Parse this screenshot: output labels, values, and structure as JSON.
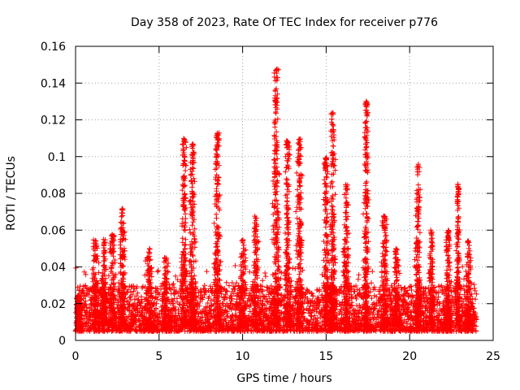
{
  "chart_data": {
    "type": "scatter",
    "title": "Day 358 of 2023, Rate Of TEC Index for receiver p776",
    "xlabel": "GPS time / hours",
    "ylabel": "ROTI / TECUs",
    "xlim": [
      0,
      25
    ],
    "ylim": [
      0,
      0.16
    ],
    "x_ticks": [
      0,
      5,
      10,
      15,
      20,
      25
    ],
    "x_tick_labels": [
      "0",
      "5",
      "10",
      "15",
      "20",
      "25"
    ],
    "y_ticks": [
      0,
      0.02,
      0.04,
      0.06,
      0.08,
      0.1,
      0.12,
      0.14,
      0.16
    ],
    "y_tick_labels": [
      "0",
      "0.02",
      "0.04",
      "0.06",
      "0.08",
      "0.1",
      "0.12",
      "0.14",
      "0.16"
    ],
    "grid": true,
    "marker": "plus",
    "series": [
      {
        "name": "ROTI",
        "color": "#ff0000",
        "x_range": [
          0,
          24
        ],
        "baseline_range": [
          0.005,
          0.03
        ],
        "bursts": [
          {
            "x": 0.2,
            "width": 0.25,
            "peak": 0.025
          },
          {
            "x": 1.2,
            "width": 0.4,
            "peak": 0.055
          },
          {
            "x": 1.7,
            "width": 0.3,
            "peak": 0.055
          },
          {
            "x": 2.2,
            "width": 0.4,
            "peak": 0.058
          },
          {
            "x": 2.8,
            "width": 0.35,
            "peak": 0.072
          },
          {
            "x": 4.4,
            "width": 0.4,
            "peak": 0.05
          },
          {
            "x": 5.4,
            "width": 0.4,
            "peak": 0.045
          },
          {
            "x": 6.5,
            "width": 0.35,
            "peak": 0.11
          },
          {
            "x": 7.0,
            "width": 0.35,
            "peak": 0.107
          },
          {
            "x": 8.5,
            "width": 0.35,
            "peak": 0.113
          },
          {
            "x": 10.0,
            "width": 0.4,
            "peak": 0.055
          },
          {
            "x": 10.8,
            "width": 0.3,
            "peak": 0.068
          },
          {
            "x": 12.0,
            "width": 0.35,
            "peak": 0.148
          },
          {
            "x": 12.7,
            "width": 0.3,
            "peak": 0.11
          },
          {
            "x": 13.4,
            "width": 0.35,
            "peak": 0.11
          },
          {
            "x": 15.0,
            "width": 0.3,
            "peak": 0.1
          },
          {
            "x": 15.4,
            "width": 0.3,
            "peak": 0.124
          },
          {
            "x": 16.2,
            "width": 0.35,
            "peak": 0.085
          },
          {
            "x": 17.4,
            "width": 0.25,
            "peak": 0.131
          },
          {
            "x": 18.5,
            "width": 0.35,
            "peak": 0.068
          },
          {
            "x": 19.2,
            "width": 0.3,
            "peak": 0.05
          },
          {
            "x": 20.5,
            "width": 0.3,
            "peak": 0.096
          },
          {
            "x": 21.3,
            "width": 0.3,
            "peak": 0.06
          },
          {
            "x": 22.3,
            "width": 0.35,
            "peak": 0.06
          },
          {
            "x": 22.9,
            "width": 0.2,
            "peak": 0.085
          },
          {
            "x": 23.5,
            "width": 0.35,
            "peak": 0.055
          }
        ]
      }
    ]
  }
}
